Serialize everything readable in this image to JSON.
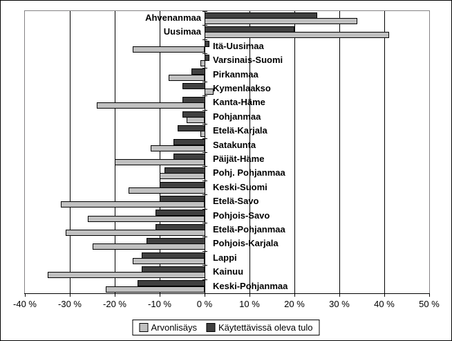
{
  "chart_data": {
    "type": "bar",
    "orientation": "horizontal",
    "title": "",
    "xlabel": "",
    "ylabel": "",
    "xlim": [
      -40,
      50
    ],
    "xtick_step": 10,
    "xtick_suffix": " %",
    "grid": "vertical-major",
    "legend_position": "bottom-center",
    "background": "#FFFFFF",
    "plot_border_color": "#848284",
    "bar_border_color": "#000000",
    "categories": [
      "Ahvenanmaa",
      "Uusimaa",
      "Itä-Uusimaa",
      "Varsinais-Suomi",
      "Pirkanmaa",
      "Kymenlaakso",
      "Kanta-Häme",
      "Pohjanmaa",
      "Etelä-Karjala",
      "Satakunta",
      "Päijät-Häme",
      "Pohj. Pohjanmaa",
      "Keski-Suomi",
      "Etelä-Savo",
      "Pohjois-Savo",
      "Etelä-Pohjanmaa",
      "Pohjois-Karjala",
      "Lappi",
      "Kainuu",
      "Keski-Pohjanmaa"
    ],
    "series": [
      {
        "name": "Arvonlisäys",
        "color": "#C0C0C0",
        "values": [
          34,
          41,
          -16,
          -1,
          -8,
          2,
          -24,
          -4,
          -1,
          -12,
          -20,
          -10,
          -17,
          -32,
          -26,
          -31,
          -25,
          -16,
          -35,
          -22
        ]
      },
      {
        "name": "Käytettävissä oleva tulo",
        "color": "#404040",
        "values": [
          25,
          20,
          1,
          1,
          -3,
          -5,
          -5,
          -5,
          -6,
          -7,
          -7,
          -9,
          -10,
          -10,
          -11,
          -11,
          -13,
          -14,
          -14,
          -15
        ]
      }
    ]
  }
}
